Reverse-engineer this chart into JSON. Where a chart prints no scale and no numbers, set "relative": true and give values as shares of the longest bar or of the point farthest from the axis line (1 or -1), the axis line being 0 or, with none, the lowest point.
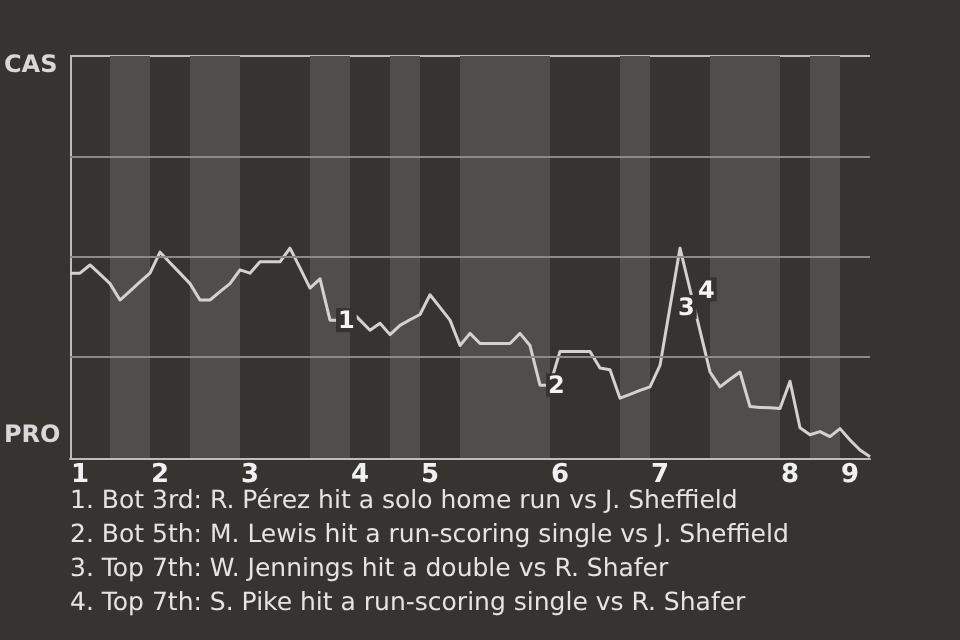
{
  "chart_data": {
    "type": "line",
    "color": "#d2d2d2",
    "marker": "none",
    "relative": true,
    "ref_lines": [
      {
        "axis": "y",
        "value": 0.479,
        "color": "#8a8a88"
      },
      {
        "axis": "y",
        "value": 0.958,
        "color": "#8a8a88"
      },
      {
        "axis": "y",
        "value": 1.437,
        "color": "#8a8a88"
      }
    ],
    "categories": [
      null,
      "1",
      null,
      null,
      null,
      null,
      null,
      null,
      null,
      "2",
      null,
      null,
      null,
      null,
      null,
      null,
      null,
      null,
      "3",
      null,
      null,
      null,
      null,
      null,
      null,
      null,
      null,
      null,
      null,
      "4",
      null,
      null,
      null,
      null,
      null,
      null,
      "5",
      null,
      null,
      null,
      null,
      null,
      null,
      null,
      null,
      null,
      null,
      null,
      null,
      "6",
      null,
      null,
      null,
      null,
      null,
      null,
      null,
      null,
      null,
      "7",
      null,
      null,
      null,
      null,
      null,
      null,
      null,
      null,
      null,
      null,
      null,
      null,
      "8",
      null,
      null,
      null,
      null,
      null,
      "9",
      null,
      null
    ],
    "values": [
      0.881,
      0.881,
      0.92,
      0.876,
      0.831,
      0.753,
      0.795,
      0.839,
      0.881,
      0.981,
      0.931,
      0.881,
      0.831,
      0.753,
      0.753,
      0.793,
      0.831,
      0.897,
      0.881,
      0.935,
      0.935,
      0.935,
      1,
      0.906,
      0.81,
      0.854,
      0.657,
      0.657,
      0.705,
      0.657,
      0.609,
      0.642,
      0.588,
      0.632,
      0.659,
      0.684,
      0.778,
      0.718,
      0.657,
      0.536,
      0.594,
      0.546,
      0.546,
      0.546,
      0.546,
      0.594,
      0.536,
      0.347,
      0.347,
      0.508,
      0.508,
      0.508,
      0.508,
      0.429,
      0.421,
      0.285,
      0.303,
      0.322,
      0.339,
      0.441,
      0.72,
      1,
      0.803,
      0.607,
      0.41,
      0.339,
      0.375,
      0.41,
      0.245,
      0.241,
      0.239,
      0.236,
      0.366,
      0.144,
      0.111,
      0.126,
      0.102,
      0.14,
      0.086,
      0.038,
      0.006
    ],
    "annotations": [
      "CAS",
      "PRO",
      {
        "text": "1",
        "y": 0.657
      },
      {
        "text": "2",
        "y": 0.347
      },
      {
        "text": "3",
        "y": 0.72
      },
      {
        "text": "4",
        "y": 0.803
      },
      "1. Bot 3rd: R. Pérez hit a solo home run vs J. Sheffield",
      "2. Bot 5th: M. Lewis hit a run-scoring single vs J. Sheffield",
      "3. Top 7th: W. Jennings hit a double vs R. Shafer",
      "4. Top 7th: S. Pike hit a run-scoring single vs R. Shafer"
    ]
  }
}
